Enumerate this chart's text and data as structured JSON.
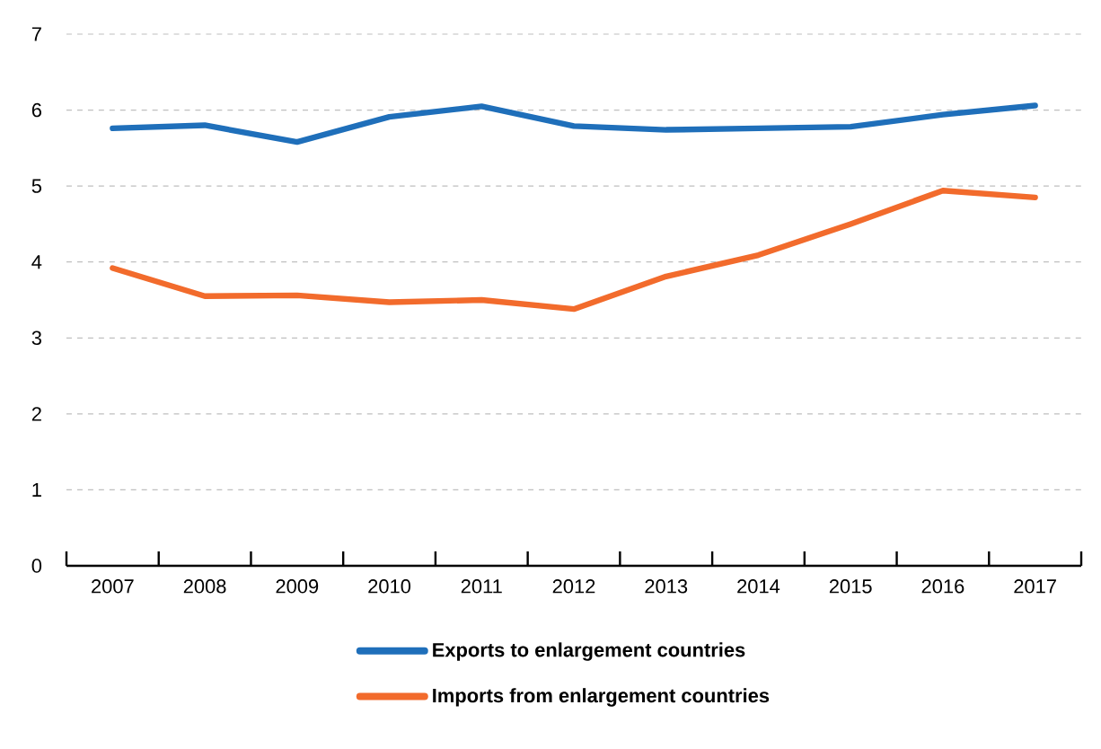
{
  "chart_data": {
    "type": "line",
    "categories": [
      "2007",
      "2008",
      "2009",
      "2010",
      "2011",
      "2012",
      "2013",
      "2014",
      "2015",
      "2016",
      "2017"
    ],
    "series": [
      {
        "name": "Exports to enlargement countries",
        "color": "#1f6fba",
        "values": [
          5.76,
          5.8,
          5.58,
          5.91,
          6.05,
          5.79,
          5.74,
          5.76,
          5.78,
          5.94,
          6.06
        ]
      },
      {
        "name": "Imports from enlargement countries",
        "color": "#f26b2c",
        "values": [
          3.92,
          3.55,
          3.56,
          3.47,
          3.5,
          3.38,
          3.81,
          4.09,
          4.5,
          4.94,
          4.85
        ]
      }
    ],
    "ylim": [
      0,
      7
    ],
    "yticks": [
      0,
      1,
      2,
      3,
      4,
      5,
      6,
      7
    ],
    "grid": "y",
    "legend": "bottom",
    "marker": "none",
    "line_style": "solid"
  }
}
